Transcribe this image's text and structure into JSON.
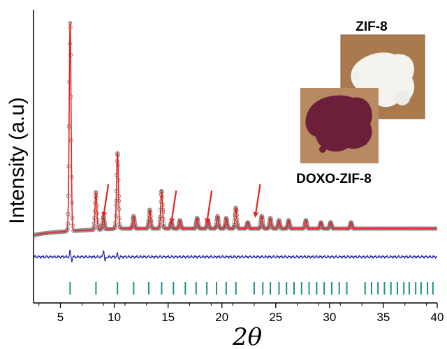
{
  "chart_data": {
    "type": "line",
    "title": "",
    "xlabel": "2θ",
    "ylabel": "Intensity (a.u)",
    "xlim": [
      2.5,
      40
    ],
    "ylim": [
      -0.32,
      1.08
    ],
    "x_ticks": [
      5,
      10,
      15,
      20,
      25,
      30,
      35,
      40
    ],
    "x_tick_labels": [
      "5",
      "10",
      "15",
      "20",
      "25",
      "30",
      "35",
      "40"
    ],
    "series": [
      {
        "role": "observed",
        "marker": "open-circle",
        "color": "#808080",
        "peaks": [
          {
            "x": 5.9,
            "y": 1.0
          },
          {
            "x": 8.3,
            "y": 0.18
          },
          {
            "x": 9.0,
            "y": 0.06
          },
          {
            "x": 10.3,
            "y": 0.36
          },
          {
            "x": 11.8,
            "y": 0.06
          },
          {
            "x": 13.3,
            "y": 0.09
          },
          {
            "x": 14.4,
            "y": 0.18
          },
          {
            "x": 15.3,
            "y": 0.03
          },
          {
            "x": 16.1,
            "y": 0.04
          },
          {
            "x": 17.7,
            "y": 0.05
          },
          {
            "x": 18.7,
            "y": 0.04
          },
          {
            "x": 19.6,
            "y": 0.06
          },
          {
            "x": 20.4,
            "y": 0.05
          },
          {
            "x": 21.3,
            "y": 0.1
          },
          {
            "x": 22.4,
            "y": 0.03
          },
          {
            "x": 23.7,
            "y": 0.06
          },
          {
            "x": 24.5,
            "y": 0.05
          },
          {
            "x": 25.3,
            "y": 0.04
          },
          {
            "x": 26.2,
            "y": 0.04
          },
          {
            "x": 27.8,
            "y": 0.04
          },
          {
            "x": 29.2,
            "y": 0.03
          },
          {
            "x": 30.1,
            "y": 0.03
          },
          {
            "x": 32.0,
            "y": 0.03
          }
        ],
        "baseline_start": 0.0,
        "baseline_end": 0.035
      },
      {
        "role": "calculated",
        "color": "#e8231e"
      },
      {
        "role": "difference",
        "color": "#23239a",
        "offset": -0.1,
        "features": [
          {
            "x": 5.9,
            "y": 0.03
          },
          {
            "x": 9.0,
            "y": 0.035
          },
          {
            "x": 10.3,
            "y": 0.015
          }
        ]
      }
    ],
    "reflection_markers": {
      "color": "#1f8f86",
      "offset": -0.25,
      "positions": [
        5.9,
        8.3,
        10.3,
        11.8,
        13.2,
        14.4,
        15.5,
        16.6,
        17.6,
        18.6,
        19.5,
        20.4,
        21.3,
        23.0,
        23.8,
        24.5,
        25.3,
        26.0,
        26.7,
        27.4,
        28.1,
        28.8,
        29.5,
        30.2,
        30.9,
        31.6,
        33.3,
        33.9,
        34.5,
        35.1,
        35.7,
        36.3,
        36.9,
        37.4,
        38.0,
        38.5,
        39.1,
        39.6
      ]
    },
    "arrows": [
      {
        "x": 9.0,
        "tip_y": 0.08,
        "color": "#e8231e"
      },
      {
        "x": 15.3,
        "tip_y": 0.05,
        "color": "#e8231e"
      },
      {
        "x": 18.6,
        "tip_y": 0.05,
        "color": "#e8231e"
      },
      {
        "x": 23.1,
        "tip_y": 0.08,
        "color": "#e8231e"
      }
    ],
    "inset_photos": [
      {
        "caption": "ZIF-8",
        "subject": "white powder",
        "color": "#f4f3f0"
      },
      {
        "caption": "DOXO-ZIF-8",
        "subject": "dark red powder",
        "color": "#6b1f3a"
      }
    ]
  }
}
